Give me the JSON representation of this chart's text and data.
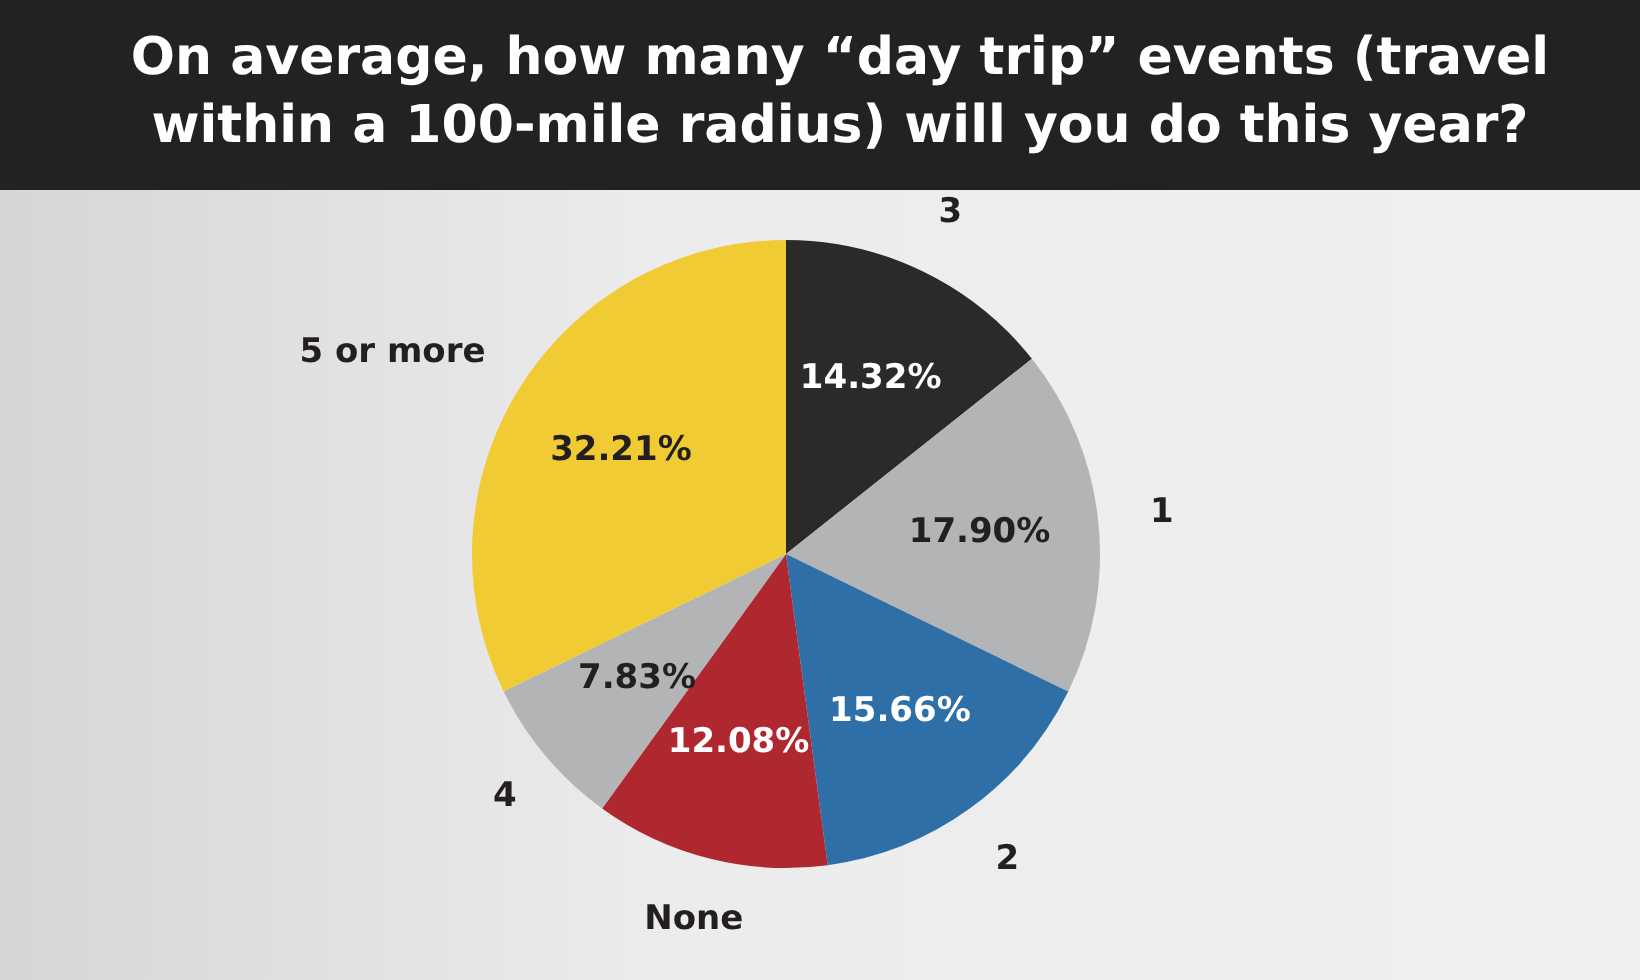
{
  "chart_data": {
    "type": "pie",
    "title": "On average, how many “day trip” events (travel within a 100-mile radius) will you do this year?",
    "categories": [
      "3",
      "1",
      "2",
      "None",
      "4",
      "5 or more"
    ],
    "values": [
      14.32,
      17.9,
      15.66,
      12.08,
      7.83,
      32.21
    ],
    "colors": [
      "#2b2a29",
      "#b3b4b6",
      "#2f6fa8",
      "#b0282f",
      "#b3b4b6",
      "#f0cb34"
    ],
    "value_labels": [
      "14.32%",
      "17.90%",
      "15.66%",
      "12.08%",
      "7.83%",
      "32.21%"
    ],
    "legend": false
  }
}
